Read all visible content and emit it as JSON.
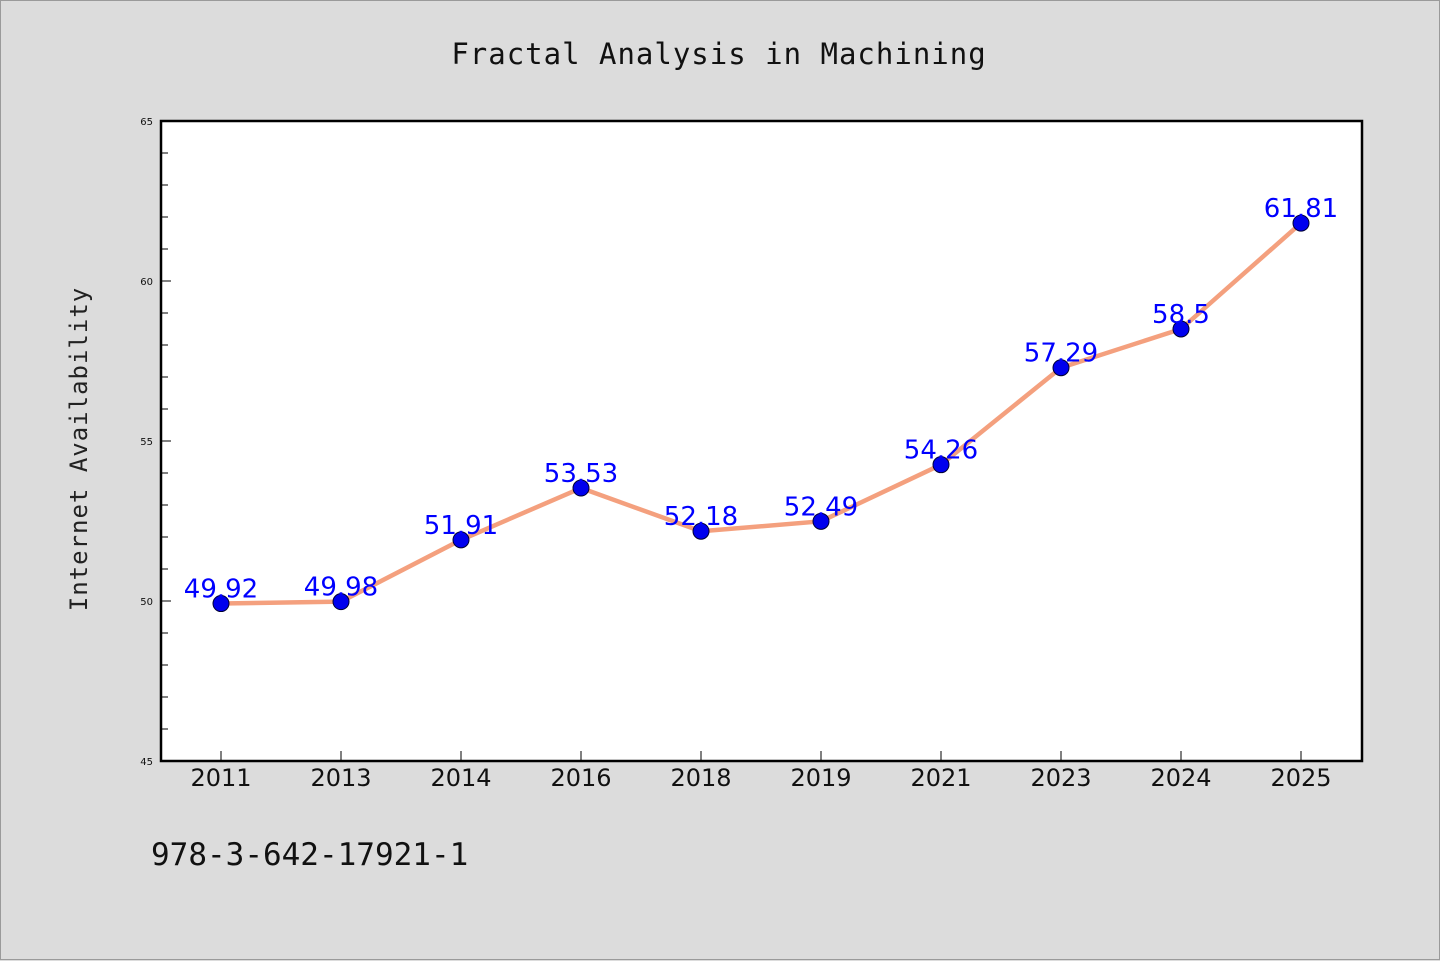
{
  "chart_data": {
    "type": "line",
    "title": "Fractal Analysis in Machining",
    "xlabel": "",
    "ylabel": "Internet Availability",
    "categories": [
      "2011",
      "2013",
      "2014",
      "2016",
      "2018",
      "2019",
      "2021",
      "2023",
      "2024",
      "2025"
    ],
    "values": [
      49.92,
      49.98,
      51.91,
      53.53,
      52.18,
      52.49,
      54.26,
      57.29,
      58.5,
      61.81
    ],
    "data_labels": [
      "49.92",
      "49.98",
      "51.91",
      "53.53",
      "52.18",
      "52.49",
      "54.26",
      "57.29",
      "58.5",
      "61.81"
    ],
    "ylim": [
      45,
      65
    ],
    "yticks": [
      "45",
      "50",
      "55",
      "60",
      "65"
    ],
    "grid": false,
    "legend": "none",
    "line_color": "#f4a07e",
    "marker_color": "#0000ee",
    "label_color": "#0000ff"
  },
  "footer_text": "978-3-642-17921-1"
}
